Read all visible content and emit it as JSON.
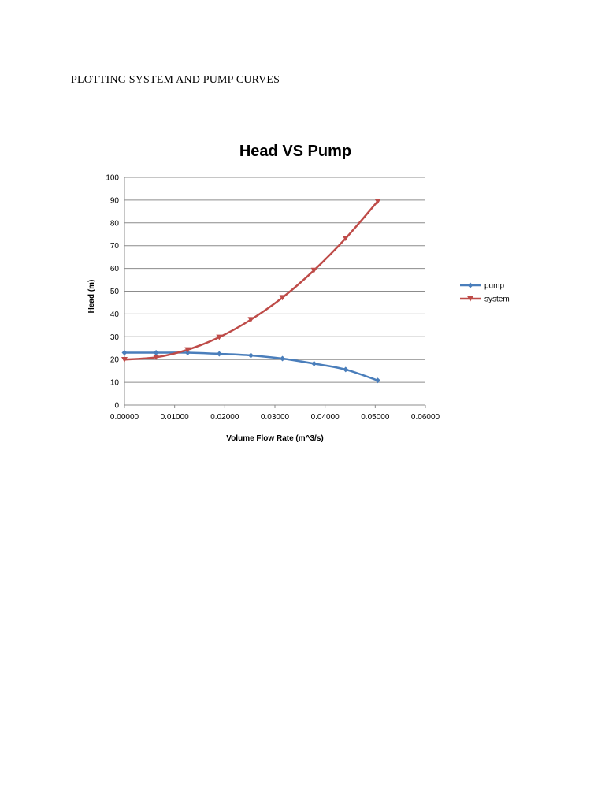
{
  "document": {
    "heading": "PLOTTING SYSTEM AND PUMP CURVES"
  },
  "chart_data": {
    "type": "line",
    "title": "Head VS Pump",
    "xlabel": "Volume Flow Rate (m^3/s)",
    "ylabel": "Head (m)",
    "xlim": [
      0,
      0.06
    ],
    "ylim": [
      0,
      100
    ],
    "x_ticks": [
      "0.00000",
      "0.01000",
      "0.02000",
      "0.03000",
      "0.04000",
      "0.05000",
      "0.06000"
    ],
    "y_ticks": [
      "0",
      "10",
      "20",
      "30",
      "40",
      "50",
      "60",
      "70",
      "80",
      "90",
      "100"
    ],
    "grid": "horizontal",
    "legend_position": "right",
    "series": [
      {
        "name": "pump",
        "color": "#4a7ebb",
        "marker": "diamond",
        "x": [
          0.0,
          0.0063,
          0.0126,
          0.0189,
          0.0252,
          0.0315,
          0.0378,
          0.0441,
          0.0505
        ],
        "y": [
          23.0,
          23.0,
          23.0,
          22.5,
          21.8,
          20.4,
          18.2,
          15.6,
          10.8
        ]
      },
      {
        "name": "system",
        "color": "#be4b48",
        "marker": "triangle-down",
        "x": [
          0.0,
          0.0063,
          0.0126,
          0.0189,
          0.0252,
          0.0315,
          0.0378,
          0.0441,
          0.0505
        ],
        "y": [
          20.0,
          21.0,
          24.3,
          29.8,
          37.5,
          47.2,
          59.2,
          73.2,
          89.5
        ]
      }
    ]
  }
}
